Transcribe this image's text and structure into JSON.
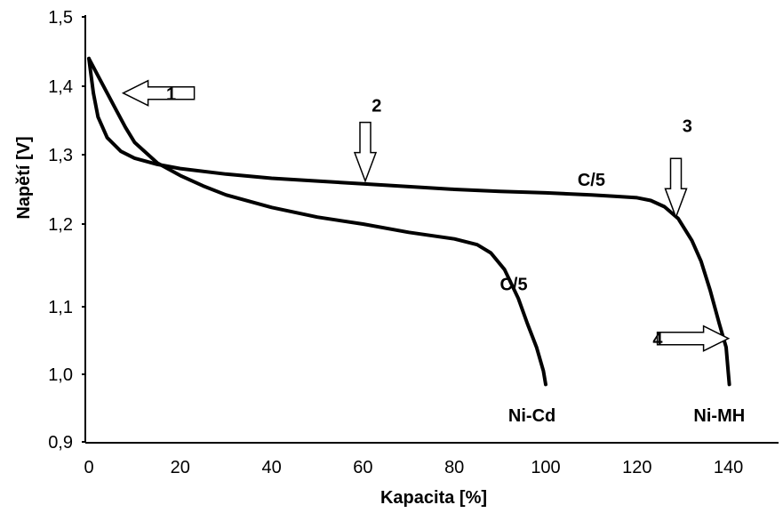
{
  "chart_data": {
    "type": "line",
    "title": "",
    "xlabel": "Kapacita [%]",
    "ylabel": "Napětí [V]",
    "xlim": [
      0,
      150
    ],
    "ylim": [
      0.9,
      1.5
    ],
    "x_ticks": [
      "0",
      "20",
      "40",
      "60",
      "80",
      "100",
      "120",
      "140"
    ],
    "y_ticks": [
      "0,9",
      "1,0",
      "1,1",
      "1,2",
      "1,3",
      "1,4",
      "1,5"
    ],
    "grid": false,
    "legend": "none",
    "series": [
      {
        "name": "Ni-Cd",
        "color": "#000000",
        "points": [
          [
            0,
            1.44
          ],
          [
            1,
            1.39
          ],
          [
            2,
            1.355
          ],
          [
            4,
            1.325
          ],
          [
            7,
            1.305
          ],
          [
            10,
            1.295
          ],
          [
            15,
            1.286
          ],
          [
            20,
            1.28
          ],
          [
            30,
            1.272
          ],
          [
            40,
            1.266
          ],
          [
            50,
            1.262
          ],
          [
            60,
            1.258
          ],
          [
            70,
            1.254
          ],
          [
            80,
            1.25
          ],
          [
            90,
            1.247
          ],
          [
            100,
            1.245
          ],
          [
            110,
            1.242
          ],
          [
            115,
            1.24
          ],
          [
            120,
            1.238
          ],
          [
            123,
            1.234
          ],
          [
            126,
            1.225
          ],
          [
            129,
            1.208
          ],
          [
            132,
            1.18
          ],
          [
            134,
            1.155
          ],
          [
            136,
            1.12
          ],
          [
            138,
            1.075
          ],
          [
            139.5,
            1.04
          ],
          [
            140,
            1.0
          ],
          [
            140.2,
            0.985
          ]
        ]
      },
      {
        "name": "Ni-MH",
        "color": "#000000",
        "points": [
          [
            0,
            1.44
          ],
          [
            2,
            1.415
          ],
          [
            4,
            1.39
          ],
          [
            6,
            1.365
          ],
          [
            8,
            1.34
          ],
          [
            10,
            1.318
          ],
          [
            15,
            1.288
          ],
          [
            20,
            1.27
          ],
          [
            25,
            1.255
          ],
          [
            30,
            1.242
          ],
          [
            40,
            1.224
          ],
          [
            50,
            1.21
          ],
          [
            60,
            1.2
          ],
          [
            70,
            1.19
          ],
          [
            80,
            1.182
          ],
          [
            85,
            1.175
          ],
          [
            88,
            1.165
          ],
          [
            91,
            1.145
          ],
          [
            94,
            1.11
          ],
          [
            96,
            1.075
          ],
          [
            98,
            1.04
          ],
          [
            99.5,
            1.005
          ],
          [
            100,
            0.985
          ]
        ]
      }
    ],
    "annotations": [
      {
        "text": "1",
        "x": 18,
        "y": 1.38
      },
      {
        "text": "2",
        "x": 63,
        "y": 1.363
      },
      {
        "text": "3",
        "x": 131,
        "y": 1.333
      },
      {
        "text": "4",
        "x": 124.5,
        "y": 1.043
      },
      {
        "text": "C/5",
        "x": 110,
        "y": 1.255
      },
      {
        "text": "C/5",
        "x": 93,
        "y": 1.12
      },
      {
        "text": "Ni-Cd",
        "x": 97,
        "y": 0.93
      },
      {
        "text": "Ni-MH",
        "x": 138,
        "y": 0.93
      }
    ],
    "arrows": [
      {
        "label": "1",
        "direction": "left",
        "tip": [
          7.5,
          1.39
        ]
      },
      {
        "label": "2",
        "direction": "down",
        "tip": [
          60.5,
          1.262
        ]
      },
      {
        "label": "3",
        "direction": "down",
        "tip": [
          128.5,
          1.21
        ]
      },
      {
        "label": "4",
        "direction": "right",
        "tip": [
          140,
          1.053
        ]
      }
    ]
  }
}
